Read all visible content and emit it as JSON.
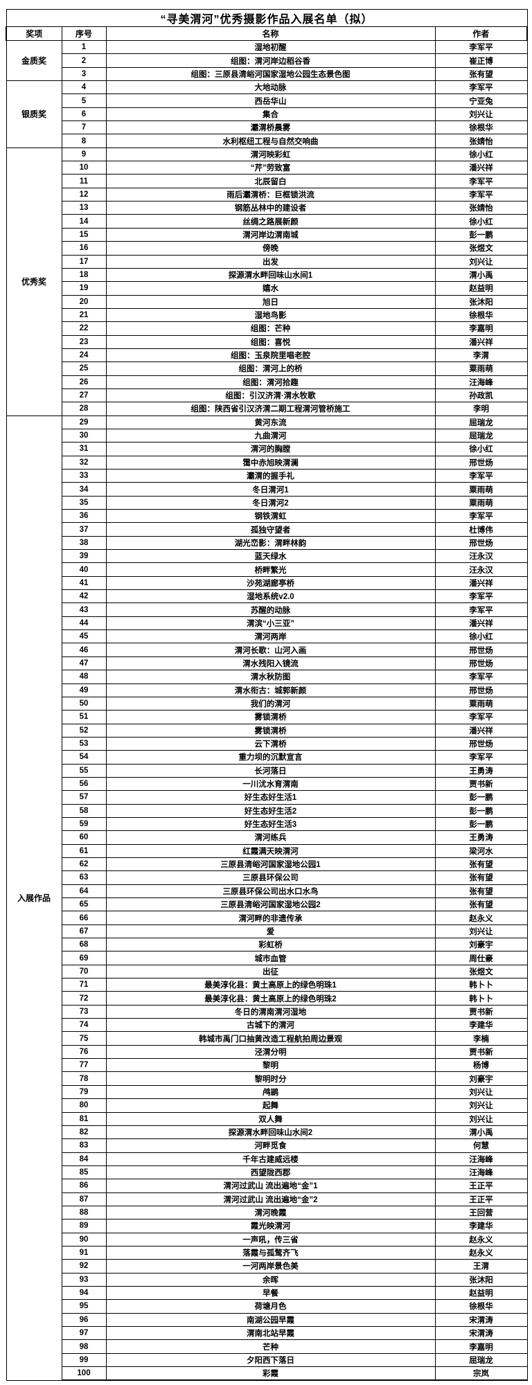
{
  "title": "“寻美渭河”优秀摄影作品入展名单（拟）",
  "columns": [
    "奖项",
    "序号",
    "名称",
    "作者"
  ],
  "groups": [
    {
      "award": "金质奖",
      "rows": [
        {
          "no": "1",
          "title": "湿地初醒",
          "author": "李军平"
        },
        {
          "no": "2",
          "title": "组图：渭河岸边稻谷香",
          "author": "崔正博"
        },
        {
          "no": "3",
          "title": "组图：三原县清峪河国家湿地公园生态景色图",
          "author": "张有望"
        }
      ]
    },
    {
      "award": "银质奖",
      "rows": [
        {
          "no": "4",
          "title": "大地动脉",
          "author": "李军平"
        },
        {
          "no": "5",
          "title": "西岳华山",
          "author": "宁亚兔"
        },
        {
          "no": "6",
          "title": "集合",
          "author": "刘兴让"
        },
        {
          "no": "7",
          "title": "灞渭桥晨雾",
          "author": "徐根华"
        },
        {
          "no": "8",
          "title": "水利枢纽工程与自然交响曲",
          "author": "张婧怡"
        }
      ]
    },
    {
      "award": "优秀奖",
      "rows": [
        {
          "no": "9",
          "title": "渭河映彩虹",
          "author": "徐小红"
        },
        {
          "no": "10",
          "title": "“芹”劳致富",
          "author": "潘兴祥"
        },
        {
          "no": "11",
          "title": "北辰留白",
          "author": "李军平"
        },
        {
          "no": "12",
          "title": "雨后灞渭桥：巨框锁洪流",
          "author": "李军平"
        },
        {
          "no": "13",
          "title": "钢筋丛林中的建设者",
          "author": "张婧怡"
        },
        {
          "no": "14",
          "title": "丝绸之路展新颜",
          "author": "徐小红"
        },
        {
          "no": "15",
          "title": "渭河岸边渭南城",
          "author": "彭一鹏"
        },
        {
          "no": "16",
          "title": "傍晚",
          "author": "张煜文"
        },
        {
          "no": "17",
          "title": "出发",
          "author": "刘兴让"
        },
        {
          "no": "18",
          "title": "探源渭水畔回味山水间1",
          "author": "渭小禹"
        },
        {
          "no": "19",
          "title": "嬉水",
          "author": "赵益明"
        },
        {
          "no": "20",
          "title": "旭日",
          "author": "张沐阳"
        },
        {
          "no": "21",
          "title": "湿地鸟影",
          "author": "徐根华"
        },
        {
          "no": "22",
          "title": "组图：芒种",
          "author": "李嘉明"
        },
        {
          "no": "23",
          "title": "组图：喜悦",
          "author": "潘兴祥"
        },
        {
          "no": "24",
          "title": "组图：玉泉院里唱老腔",
          "author": "李渭"
        },
        {
          "no": "25",
          "title": "组图：渭河上的桥",
          "author": "粟雨萌"
        },
        {
          "no": "26",
          "title": "组图：渭河拾趣",
          "author": "汪海峰"
        },
        {
          "no": "27",
          "title": "组图：引汉济渭·渭水牧歌",
          "author": "孙政凯"
        },
        {
          "no": "28",
          "title": "组图：陕西省引汉济渭二期工程渭河管桥施工",
          "author": "李明"
        }
      ]
    },
    {
      "award": "入展作品",
      "rows": [
        {
          "no": "29",
          "title": "黄河东流",
          "author": "屈瑞龙"
        },
        {
          "no": "30",
          "title": "九曲渭河",
          "author": "屈瑞龙"
        },
        {
          "no": "31",
          "title": "渭河的胸膛",
          "author": "徐小红"
        },
        {
          "no": "32",
          "title": "霭中赤旭映渭澜",
          "author": "邢世炀"
        },
        {
          "no": "33",
          "title": "灞渭的握手礼",
          "author": "李军平"
        },
        {
          "no": "34",
          "title": "冬日渭河1",
          "author": "粟雨萌"
        },
        {
          "no": "35",
          "title": "冬日渭河2",
          "author": "粟雨萌"
        },
        {
          "no": "36",
          "title": "钢铁渭虹",
          "author": "李军平"
        },
        {
          "no": "37",
          "title": "孤独守望者",
          "author": "杜博伟"
        },
        {
          "no": "38",
          "title": "湖光峦影：渭畔林韵",
          "author": "邢世炀"
        },
        {
          "no": "39",
          "title": "蓝天绿水",
          "author": "汪永汉"
        },
        {
          "no": "40",
          "title": "桥畔繁光",
          "author": "汪永汉"
        },
        {
          "no": "41",
          "title": "沙苑湖廊亭桥",
          "author": "潘兴祥"
        },
        {
          "no": "42",
          "title": "湿地系统v2.0",
          "author": "李军平"
        },
        {
          "no": "43",
          "title": "苏醒的动脉",
          "author": "李军平"
        },
        {
          "no": "44",
          "title": "渭滨“小三亚”",
          "author": "潘兴祥"
        },
        {
          "no": "45",
          "title": "渭河两岸",
          "author": "徐小红"
        },
        {
          "no": "46",
          "title": "渭河长歌：山河入画",
          "author": "邢世炀"
        },
        {
          "no": "47",
          "title": "渭水残阳入镜流",
          "author": "邢世炀"
        },
        {
          "no": "48",
          "title": "渭水秋防图",
          "author": "李军平"
        },
        {
          "no": "49",
          "title": "渭水衔古：城郭新颜",
          "author": "邢世炀"
        },
        {
          "no": "50",
          "title": "我们的渭河",
          "author": "粟雨萌"
        },
        {
          "no": "51",
          "title": "雾锁渭桥",
          "author": "李军平"
        },
        {
          "no": "52",
          "title": "雾锁渭桥",
          "author": "潘兴祥"
        },
        {
          "no": "53",
          "title": "云下渭桥",
          "author": "邢世炀"
        },
        {
          "no": "54",
          "title": "重力坝的沉默宣言",
          "author": "李军平"
        },
        {
          "no": "55",
          "title": "长河落日",
          "author": "王勇涛"
        },
        {
          "no": "56",
          "title": "一川沋水育渭南",
          "author": "贾书新"
        },
        {
          "no": "57",
          "title": "好生态好生活1",
          "author": "彭一鹏"
        },
        {
          "no": "58",
          "title": "好生态好生活2",
          "author": "彭一鹏"
        },
        {
          "no": "59",
          "title": "好生态好生活3",
          "author": "彭一鹏"
        },
        {
          "no": "60",
          "title": "渭河练兵",
          "author": "王勇涛"
        },
        {
          "no": "61",
          "title": "红霞满天映渭河",
          "author": "梁河水"
        },
        {
          "no": "62",
          "title": "三原县清峪河国家湿地公园1",
          "author": "张有望"
        },
        {
          "no": "63",
          "title": "三原县环保公司",
          "author": "张有望"
        },
        {
          "no": "64",
          "title": "三原县环保公司出水口水鸟",
          "author": "张有望"
        },
        {
          "no": "65",
          "title": "三原县清峪河国家湿地公园2",
          "author": "张有望"
        },
        {
          "no": "66",
          "title": "渭河畔的非遗传承",
          "author": "赵永义"
        },
        {
          "no": "67",
          "title": "爱",
          "author": "刘兴让"
        },
        {
          "no": "68",
          "title": "彩虹桥",
          "author": "刘豪宇"
        },
        {
          "no": "69",
          "title": "城市血管",
          "author": "周仕豪"
        },
        {
          "no": "70",
          "title": "出征",
          "author": "张煜文"
        },
        {
          "no": "71",
          "title": "最美淳化县：黄土高原上的绿色明珠1",
          "author": "韩卜卜"
        },
        {
          "no": "72",
          "title": "最美淳化县：黄土高原上的绿色明珠2",
          "author": "韩卜卜"
        },
        {
          "no": "73",
          "title": "冬日的渭南渭河湿地",
          "author": "贾书新"
        },
        {
          "no": "74",
          "title": "古城下的渭河",
          "author": "李建华"
        },
        {
          "no": "75",
          "title": "韩城市禹门口抽黄改造工程航拍周边景观",
          "author": "李楠"
        },
        {
          "no": "76",
          "title": "泾渭分明",
          "author": "贾书新"
        },
        {
          "no": "77",
          "title": "黎明",
          "author": "杨博"
        },
        {
          "no": "78",
          "title": "黎明时分",
          "author": "刘豪宇"
        },
        {
          "no": "79",
          "title": "鸬鹚",
          "author": "刘兴让"
        },
        {
          "no": "80",
          "title": "起舞",
          "author": "刘兴让"
        },
        {
          "no": "81",
          "title": "双人舞",
          "author": "刘兴让"
        },
        {
          "no": "82",
          "title": "探源渭水畔回味山水间2",
          "author": "渭小禹"
        },
        {
          "no": "83",
          "title": "河畔觅食",
          "author": "何慧"
        },
        {
          "no": "84",
          "title": "千年古建威远楼",
          "author": "汪海峰"
        },
        {
          "no": "85",
          "title": "西望陇西郡",
          "author": "汪海峰"
        },
        {
          "no": "86",
          "title": "渭河过武山 流出遍地“金”1",
          "author": "王正平"
        },
        {
          "no": "87",
          "title": "渭河过武山 流出遍地“金”2",
          "author": "王正平"
        },
        {
          "no": "88",
          "title": "渭河晚霞",
          "author": "王回营"
        },
        {
          "no": "89",
          "title": "霞光映渭河",
          "author": "李建华"
        },
        {
          "no": "90",
          "title": "一声吼，传三省",
          "author": "赵永义"
        },
        {
          "no": "91",
          "title": "落霞与孤鹜齐飞",
          "author": "赵永义"
        },
        {
          "no": "92",
          "title": "一河两岸景色美",
          "author": "王渭"
        },
        {
          "no": "93",
          "title": "余晖",
          "author": "张沐阳"
        },
        {
          "no": "94",
          "title": "早餐",
          "author": "赵益明"
        },
        {
          "no": "95",
          "title": "荷塘月色",
          "author": "徐根华"
        },
        {
          "no": "96",
          "title": "南湖公园早霞",
          "author": "宋渭涛"
        },
        {
          "no": "97",
          "title": "渭南北站早霞",
          "author": "宋渭涛"
        },
        {
          "no": "98",
          "title": "芒种",
          "author": "李嘉明"
        },
        {
          "no": "99",
          "title": "夕阳西下落日",
          "author": "屈瑞龙"
        },
        {
          "no": "100",
          "title": "彩霞",
          "author": "宗岚"
        }
      ]
    }
  ]
}
